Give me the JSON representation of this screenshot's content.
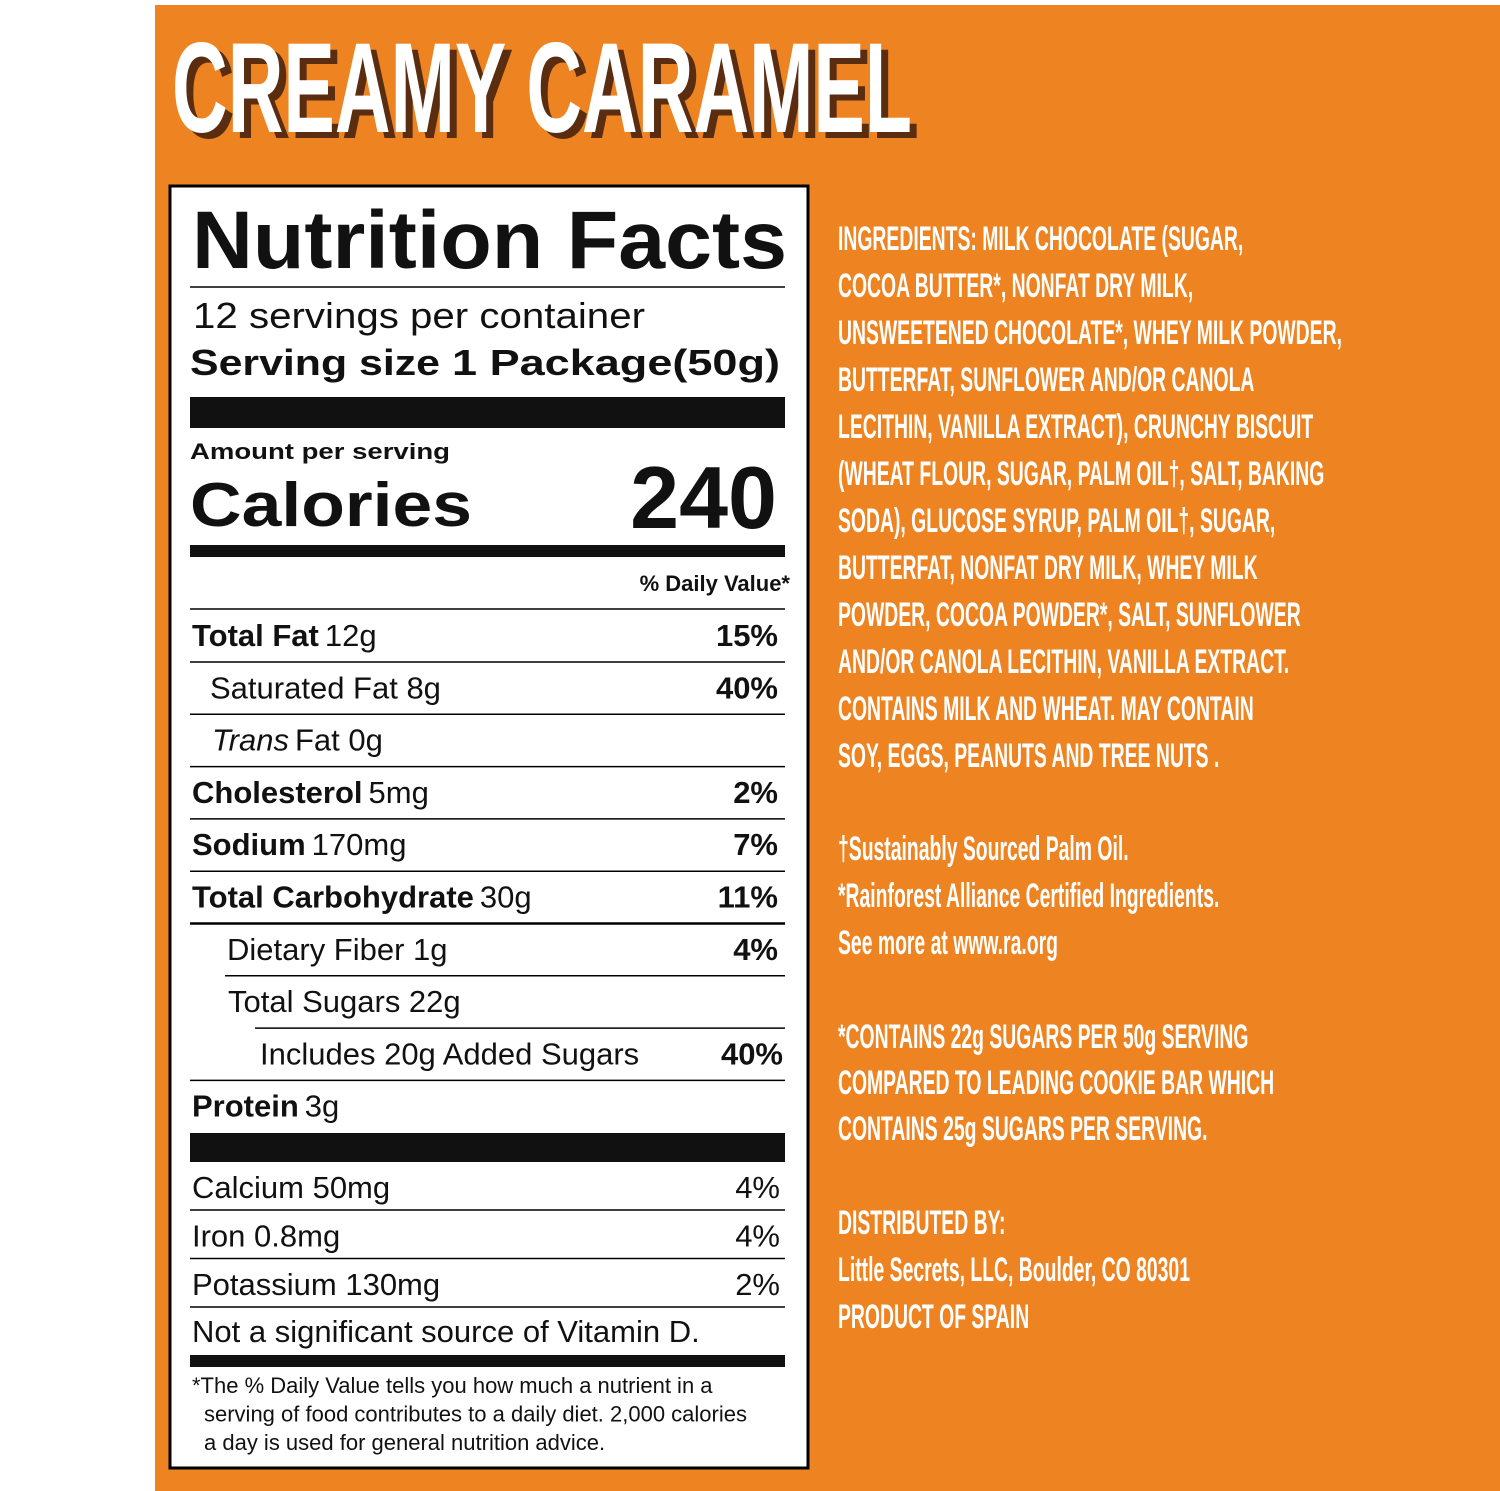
{
  "title": "CREAMY CARAMEL",
  "nutrition_facts": {
    "heading": "Nutrition Facts",
    "servings": "12 servings per container",
    "serving_size_label": "Serving size",
    "serving_size": "1 Package(50g)",
    "amount_per_serving": "Amount per serving",
    "calories_label": "Calories",
    "calories": 240,
    "daily_value_header": "% Daily Value*",
    "rows": [
      {
        "name": "Total Fat",
        "amount": "12g",
        "dv": "15%"
      },
      {
        "name": "Saturated Fat 8g",
        "dv": "40%"
      },
      {
        "name": "Trans",
        "amount": "Fat 0g"
      },
      {
        "name": "Cholesterol",
        "amount": "5mg",
        "dv": "2%"
      },
      {
        "name": "Sodium",
        "amount": "170mg",
        "dv": "7%"
      },
      {
        "name": "Total Carbohydrate",
        "amount": "30g",
        "dv": "11%"
      },
      {
        "name": "Dietary Fiber 1g",
        "dv": "4%"
      },
      {
        "name": "Total Sugars 22g"
      },
      {
        "name": "Includes 20g Added Sugars",
        "dv": "40%"
      },
      {
        "name": "Protein",
        "amount": "3g"
      }
    ],
    "minerals": [
      {
        "name": "Calcium 50mg",
        "dv": "4%"
      },
      {
        "name": "Iron 0.8mg",
        "dv": "4%"
      },
      {
        "name": "Potassium 130mg",
        "dv": "2%"
      }
    ],
    "vitamin_note": "Not a significant source of Vitamin D.",
    "footnote": [
      "*The % Daily Value tells you how much a nutrient in a",
      "serving of food contributes to a daily diet. 2,000 calories",
      "a day is used for general nutrition advice."
    ]
  },
  "ingredients": {
    "lines": [
      "INGREDIENTS: MILK CHOCOLATE (SUGAR,",
      "COCOA BUTTER*, NONFAT DRY MILK,",
      "UNSWEETENED CHOCOLATE*, WHEY MILK POWDER,",
      "BUTTERFAT, SUNFLOWER AND/OR CANOLA",
      "LECITHIN, VANILLA EXTRACT), CRUNCHY BISCUIT",
      "(WHEAT FLOUR, SUGAR, PALM OIL†, SALT, BAKING",
      "SODA), GLUCOSE SYRUP, PALM OIL†, SUGAR,",
      "BUTTERFAT, NONFAT DRY MILK, WHEY MILK",
      "POWDER, COCOA POWDER*, SALT, SUNFLOWER",
      "AND/OR CANOLA LECITHIN, VANILLA EXTRACT.",
      "CONTAINS MILK AND WHEAT. MAY CONTAIN",
      "SOY, EGGS, PEANUTS AND TREE NUTS ."
    ]
  },
  "notes": {
    "lines": [
      "†Sustainably Sourced Palm Oil.",
      "*Rainforest Alliance Certified Ingredients.",
      "See more at www.ra.org"
    ]
  },
  "sugar_claim": {
    "lines": [
      "*CONTAINS 22g SUGARS PER 50g SERVING",
      "COMPARED TO LEADING COOKIE BAR WHICH",
      "CONTAINS 25g SUGARS PER SERVING."
    ]
  },
  "distributor": {
    "lines": [
      "DISTRIBUTED BY:",
      "Little Secrets, LLC, Boulder, CO 80301",
      "PRODUCT OF SPAIN"
    ]
  }
}
